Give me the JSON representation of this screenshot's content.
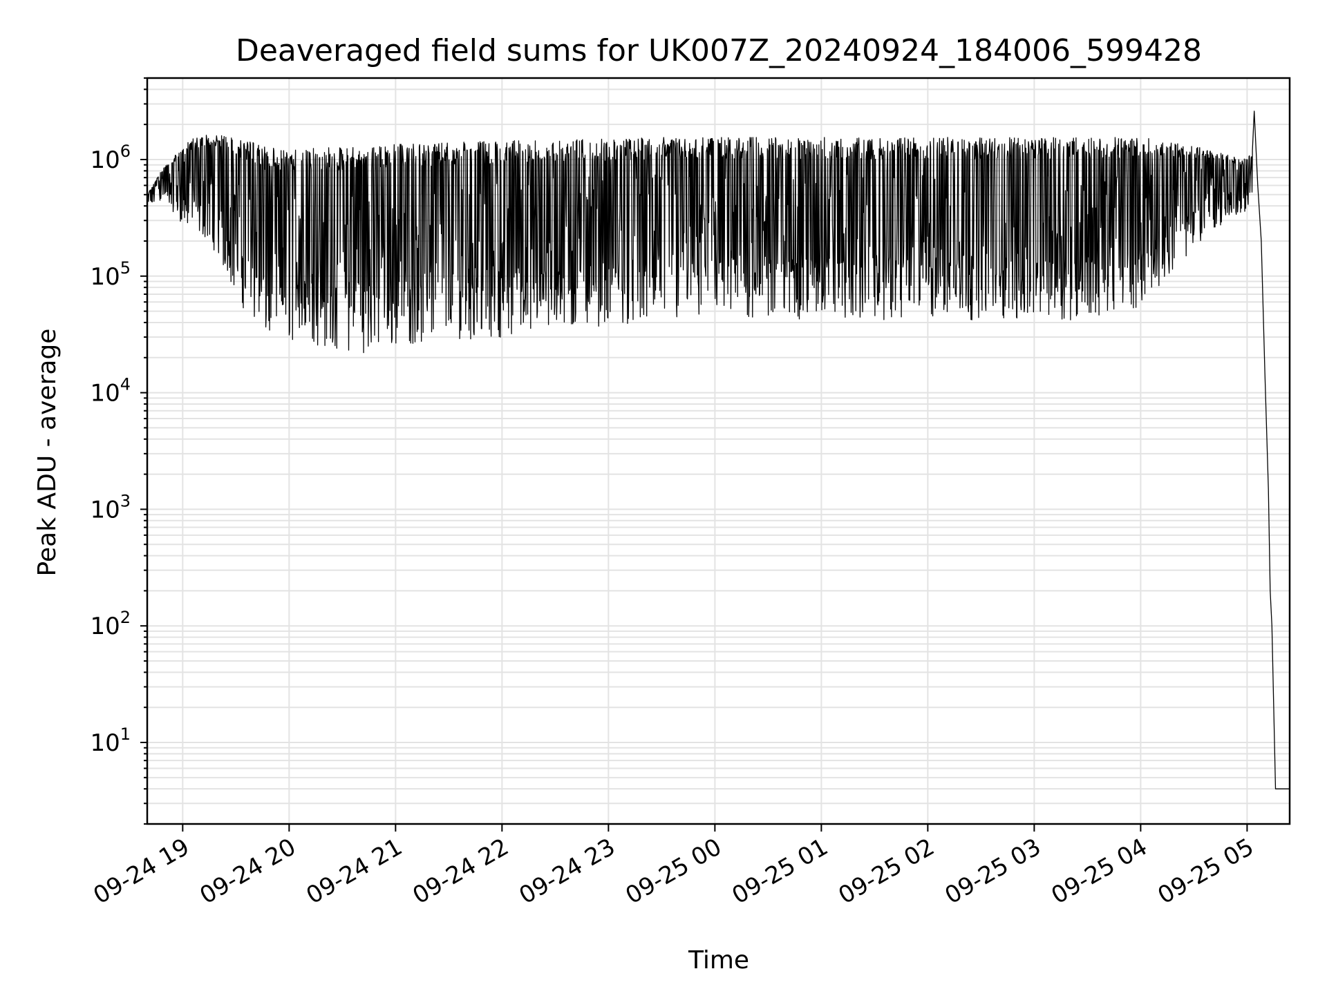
{
  "chart_data": {
    "type": "line",
    "title": "Deaveraged field sums for UK007Z_20240924_184006_599428",
    "xlabel": "Time",
    "ylabel": "Peak ADU - average",
    "yscale": "log",
    "ylim": [
      2,
      5000000
    ],
    "xlim": [
      "2024-09-24 18:40",
      "2024-09-25 05:24"
    ],
    "grid": true,
    "grid_color": "#e3e3e3",
    "line_color": "#000000",
    "x_ticks": [
      {
        "x": "2024-09-24 19:00",
        "label": "09-24 19"
      },
      {
        "x": "2024-09-24 20:00",
        "label": "09-24 20"
      },
      {
        "x": "2024-09-24 21:00",
        "label": "09-24 21"
      },
      {
        "x": "2024-09-24 22:00",
        "label": "09-24 22"
      },
      {
        "x": "2024-09-24 23:00",
        "label": "09-24 23"
      },
      {
        "x": "2024-09-25 00:00",
        "label": "09-25 00"
      },
      {
        "x": "2024-09-25 01:00",
        "label": "09-25 01"
      },
      {
        "x": "2024-09-25 02:00",
        "label": "09-25 02"
      },
      {
        "x": "2024-09-25 03:00",
        "label": "09-25 03"
      },
      {
        "x": "2024-09-25 04:00",
        "label": "09-25 04"
      },
      {
        "x": "2024-09-25 05:00",
        "label": "09-25 05"
      }
    ],
    "y_ticks": [
      {
        "value": 10,
        "base": "10",
        "exp": "1"
      },
      {
        "value": 100,
        "base": "10",
        "exp": "2"
      },
      {
        "value": 1000,
        "base": "10",
        "exp": "3"
      },
      {
        "value": 10000,
        "base": "10",
        "exp": "4"
      },
      {
        "value": 100000,
        "base": "10",
        "exp": "5"
      },
      {
        "value": 1000000,
        "base": "10",
        "exp": "6"
      }
    ],
    "series": [
      {
        "envelope": {
          "x": [
            "2024-09-24 18:40",
            "2024-09-24 18:50",
            "2024-09-24 18:58",
            "2024-09-24 19:05",
            "2024-09-24 19:15",
            "2024-09-24 19:25",
            "2024-09-24 19:35",
            "2024-09-24 19:45",
            "2024-09-24 20:00",
            "2024-09-24 20:15",
            "2024-09-24 20:30",
            "2024-09-24 20:45",
            "2024-09-24 21:00",
            "2024-09-24 21:30",
            "2024-09-24 22:00",
            "2024-09-24 22:30",
            "2024-09-24 23:00",
            "2024-09-24 23:30",
            "2024-09-25 00:00",
            "2024-09-25 00:30",
            "2024-09-25 01:00",
            "2024-09-25 01:30",
            "2024-09-25 02:00",
            "2024-09-25 02:30",
            "2024-09-25 03:00",
            "2024-09-25 03:30",
            "2024-09-25 04:00",
            "2024-09-25 04:10",
            "2024-09-25 04:20",
            "2024-09-25 04:30",
            "2024-09-25 04:40",
            "2024-09-25 04:50",
            "2024-09-25 05:00",
            "2024-09-25 05:03"
          ],
          "high": [
            500000,
            900000,
            1200000,
            1500000,
            1700000,
            1600000,
            1500000,
            1300000,
            1200000,
            1250000,
            1300000,
            1300000,
            1350000,
            1400000,
            1450000,
            1500000,
            1500000,
            1550000,
            1550000,
            1550000,
            1550000,
            1550000,
            1550000,
            1550000,
            1550000,
            1550000,
            1550000,
            1500000,
            1400000,
            1300000,
            1200000,
            1100000,
            1000000,
            1200000
          ],
          "low": [
            400000,
            450000,
            300000,
            250000,
            200000,
            100000,
            50000,
            30000,
            28000,
            25000,
            22000,
            22000,
            25000,
            28000,
            30000,
            33000,
            38000,
            40000,
            40000,
            42000,
            42000,
            42000,
            42000,
            42000,
            42000,
            42000,
            55000,
            80000,
            120000,
            170000,
            250000,
            300000,
            350000,
            500000
          ]
        },
        "tail": {
          "x": [
            "2024-09-25 05:03",
            "2024-09-25 05:04",
            "2024-09-25 05:06",
            "2024-09-25 05:08",
            "2024-09-25 05:10",
            "2024-09-25 05:12",
            "2024-09-25 05:13",
            "2024-09-25 05:14",
            "2024-09-25 05:16",
            "2024-09-25 05:18",
            "2024-09-25 05:20",
            "2024-09-25 05:22",
            "2024-09-25 05:24"
          ],
          "y": [
            1200000,
            2600000,
            600000,
            200000,
            15000,
            1500,
            200,
            100,
            4,
            4,
            4,
            4,
            4
          ]
        }
      }
    ]
  }
}
